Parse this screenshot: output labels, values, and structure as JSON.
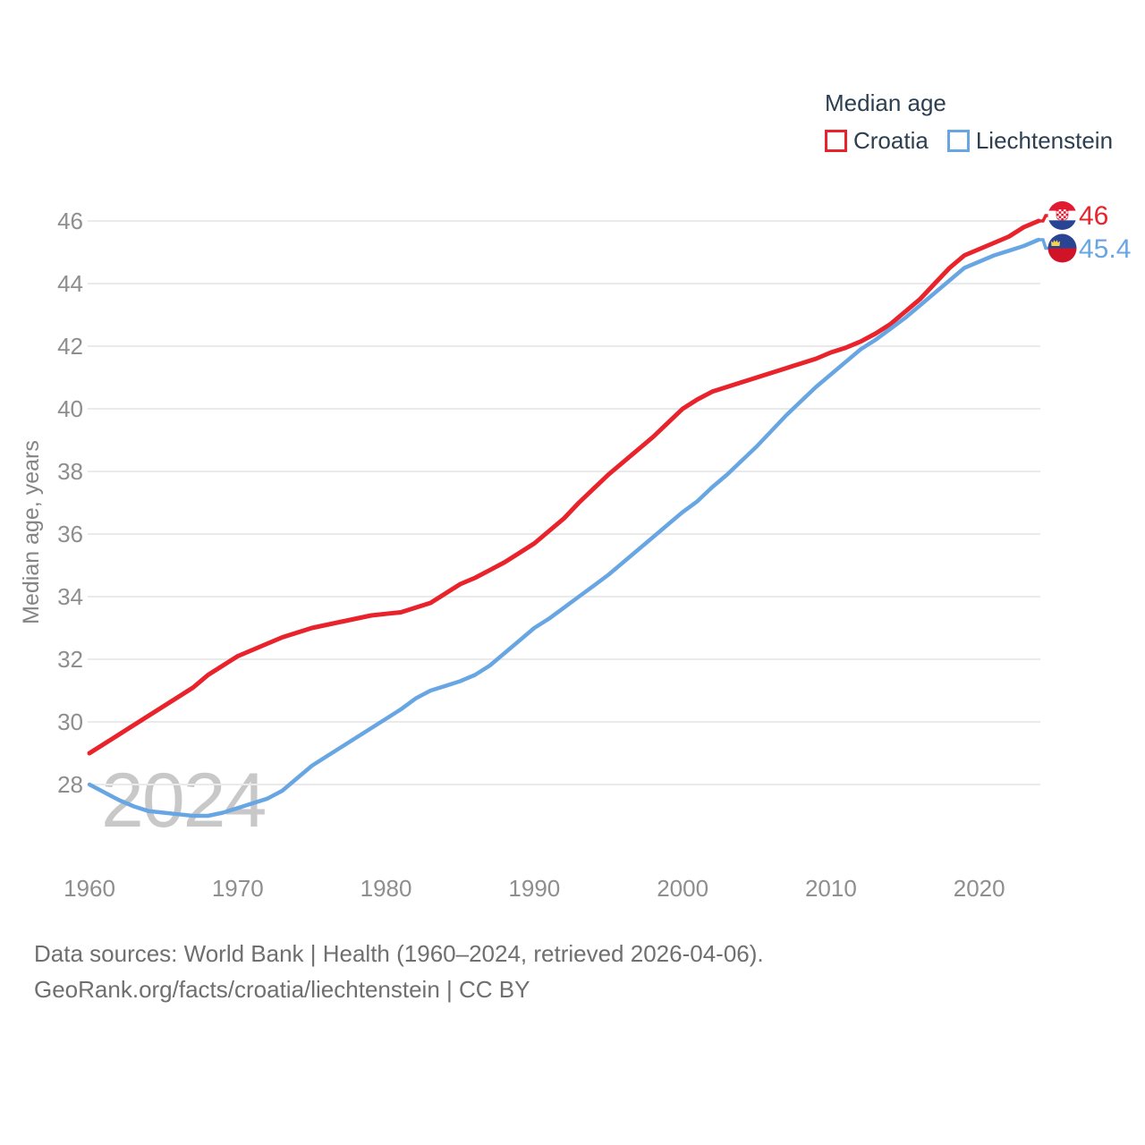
{
  "legend": {
    "title": "Median age",
    "series": [
      {
        "label": "Croatia",
        "color": "#e8232b"
      },
      {
        "label": "Liechtenstein",
        "color": "#68a6e3"
      }
    ]
  },
  "watermark": "2024",
  "chart_data": {
    "type": "line",
    "title": "Median age",
    "ylabel": "Median age, years",
    "xlabel": "",
    "grid": "horizontal",
    "legend_position": "top-right",
    "ylim": [
      26.6,
      46.6
    ],
    "xlim": [
      1960,
      2024
    ],
    "y_ticks": [
      46,
      44,
      42,
      40,
      38,
      36,
      34,
      32,
      30,
      28
    ],
    "x_ticks": [
      1960,
      1970,
      1980,
      1990,
      2000,
      2010,
      2020
    ],
    "x": [
      1960,
      1961,
      1962,
      1963,
      1964,
      1965,
      1966,
      1967,
      1968,
      1969,
      1970,
      1971,
      1972,
      1973,
      1974,
      1975,
      1976,
      1977,
      1978,
      1979,
      1980,
      1981,
      1982,
      1983,
      1984,
      1985,
      1986,
      1987,
      1988,
      1989,
      1990,
      1991,
      1992,
      1993,
      1994,
      1995,
      1996,
      1997,
      1998,
      1999,
      2000,
      2001,
      2002,
      2003,
      2004,
      2005,
      2006,
      2007,
      2008,
      2009,
      2010,
      2011,
      2012,
      2013,
      2014,
      2015,
      2016,
      2017,
      2018,
      2019,
      2020,
      2021,
      2022,
      2023,
      2024
    ],
    "series": [
      {
        "name": "Croatia",
        "color": "#e8232b",
        "end_label": "46",
        "flag": "croatia",
        "values": [
          29.0,
          29.3,
          29.6,
          29.9,
          30.2,
          30.5,
          30.8,
          31.1,
          31.5,
          31.8,
          32.1,
          32.3,
          32.5,
          32.7,
          32.85,
          33.0,
          33.1,
          33.2,
          33.3,
          33.4,
          33.45,
          33.5,
          33.65,
          33.8,
          34.1,
          34.4,
          34.6,
          34.85,
          35.1,
          35.4,
          35.7,
          36.1,
          36.5,
          37.0,
          37.45,
          37.9,
          38.3,
          38.7,
          39.1,
          39.55,
          40.0,
          40.3,
          40.55,
          40.7,
          40.85,
          41.0,
          41.15,
          41.3,
          41.45,
          41.6,
          41.8,
          41.95,
          42.15,
          42.4,
          42.7,
          43.1,
          43.5,
          44.0,
          44.5,
          44.9,
          45.1,
          45.3,
          45.5,
          45.8,
          46.0
        ]
      },
      {
        "name": "Liechtenstein",
        "color": "#68a6e3",
        "end_label": "45.4",
        "flag": "liechtenstein",
        "values": [
          28.0,
          27.75,
          27.5,
          27.3,
          27.15,
          27.1,
          27.05,
          27.0,
          27.0,
          27.1,
          27.25,
          27.4,
          27.55,
          27.8,
          28.2,
          28.6,
          28.9,
          29.2,
          29.5,
          29.8,
          30.1,
          30.4,
          30.75,
          31.0,
          31.15,
          31.3,
          31.5,
          31.8,
          32.2,
          32.6,
          33.0,
          33.3,
          33.65,
          34.0,
          34.35,
          34.7,
          35.1,
          35.5,
          35.9,
          36.3,
          36.7,
          37.05,
          37.5,
          37.9,
          38.35,
          38.8,
          39.3,
          39.8,
          40.25,
          40.7,
          41.1,
          41.5,
          41.9,
          42.2,
          42.55,
          42.9,
          43.3,
          43.7,
          44.1,
          44.5,
          44.7,
          44.9,
          45.05,
          45.2,
          45.4
        ]
      }
    ]
  },
  "footer": {
    "line1": "Data sources: World Bank | Health (1960–2024, retrieved 2026-04-06).",
    "line2": "GeoRank.org/facts/croatia/liechtenstein | CC BY"
  }
}
